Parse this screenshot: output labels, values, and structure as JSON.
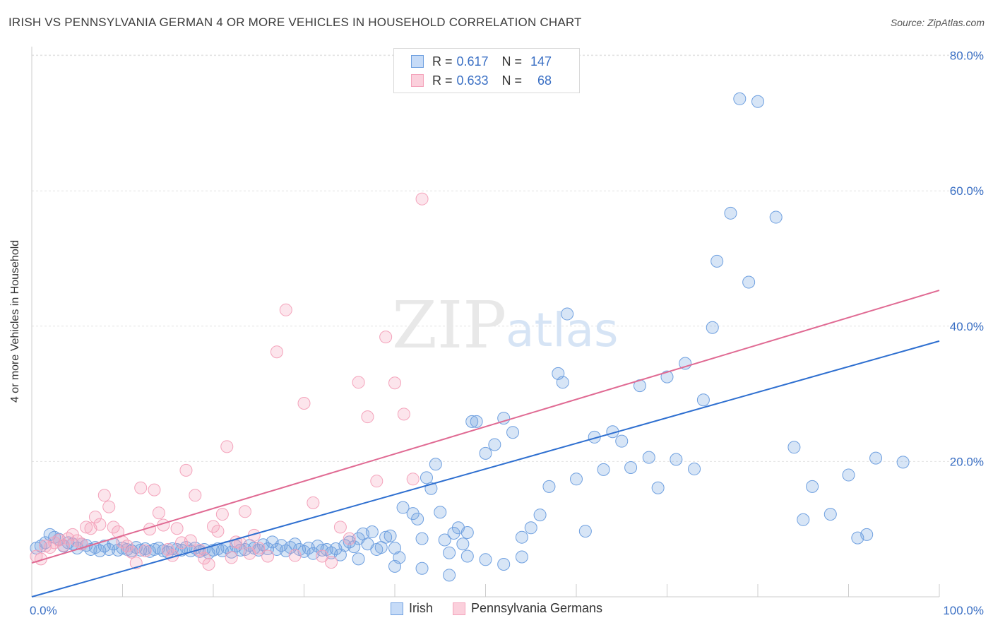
{
  "title": "IRISH VS PENNSYLVANIA GERMAN 4 OR MORE VEHICLES IN HOUSEHOLD CORRELATION CHART",
  "source": "Source: ZipAtlas.com",
  "watermark": {
    "zip": "ZIP",
    "atlas": "atlas"
  },
  "legend": {
    "rows": [
      {
        "r_label": "R =",
        "r_value": "0.617",
        "n_label": "N =",
        "n_value": "147"
      },
      {
        "r_label": "R =",
        "r_value": "0.633",
        "n_label": "N =",
        "n_value": "68"
      }
    ]
  },
  "chart_data": {
    "type": "scatter",
    "title": "IRISH VS PENNSYLVANIA GERMAN 4 OR MORE VEHICLES IN HOUSEHOLD CORRELATION CHART",
    "xlabel": "",
    "ylabel": "4 or more Vehicles in Household",
    "xlim": [
      0,
      100
    ],
    "ylim": [
      0,
      80
    ],
    "x_tick_labels": [
      "0.0%",
      "100.0%"
    ],
    "y_ticks": [
      20,
      40,
      60,
      80
    ],
    "y_tick_labels": [
      "20.0%",
      "40.0%",
      "60.0%",
      "80.0%"
    ],
    "grid": true,
    "legend_position": "top-center",
    "colors": {
      "irish": "#6fa0e0",
      "irish_line": "#2e6fd0",
      "pa": "#f4a3bb",
      "pa_line": "#e06a93",
      "tick": "#3a6fc4"
    },
    "series": [
      {
        "name": "Irish",
        "trend": {
          "x": [
            0,
            100
          ],
          "y": [
            0.0,
            37.8
          ]
        },
        "points": [
          [
            0.5,
            7.2
          ],
          [
            1.0,
            7.5
          ],
          [
            1.5,
            8.0
          ],
          [
            2.0,
            9.2
          ],
          [
            2.5,
            8.8
          ],
          [
            3.0,
            8.5
          ],
          [
            3.5,
            7.5
          ],
          [
            4.0,
            8.0
          ],
          [
            4.5,
            7.8
          ],
          [
            5.0,
            7.2
          ],
          [
            5.5,
            7.8
          ],
          [
            6.0,
            7.6
          ],
          [
            6.5,
            7.0
          ],
          [
            7.0,
            7.3
          ],
          [
            7.5,
            6.8
          ],
          [
            8.0,
            7.5
          ],
          [
            8.5,
            7.0
          ],
          [
            9.0,
            7.8
          ],
          [
            9.5,
            6.9
          ],
          [
            10.0,
            7.2
          ],
          [
            10.5,
            7.0
          ],
          [
            11.0,
            6.8
          ],
          [
            11.5,
            7.3
          ],
          [
            12.0,
            6.9
          ],
          [
            12.5,
            7.1
          ],
          [
            13.0,
            6.7
          ],
          [
            13.5,
            7.0
          ],
          [
            14.0,
            7.2
          ],
          [
            14.5,
            6.8
          ],
          [
            15.0,
            6.6
          ],
          [
            15.5,
            7.1
          ],
          [
            16.0,
            7.0
          ],
          [
            16.5,
            6.9
          ],
          [
            17.0,
            7.3
          ],
          [
            17.5,
            6.8
          ],
          [
            18.0,
            7.2
          ],
          [
            18.5,
            6.7
          ],
          [
            19.0,
            7.0
          ],
          [
            19.5,
            6.5
          ],
          [
            20.0,
            6.9
          ],
          [
            20.5,
            7.1
          ],
          [
            21.0,
            6.8
          ],
          [
            21.5,
            7.3
          ],
          [
            22.0,
            6.6
          ],
          [
            22.5,
            7.5
          ],
          [
            23.0,
            6.9
          ],
          [
            23.5,
            7.0
          ],
          [
            24.0,
            7.6
          ],
          [
            24.5,
            7.2
          ],
          [
            25.0,
            6.9
          ],
          [
            25.5,
            7.7
          ],
          [
            26.0,
            7.1
          ],
          [
            26.5,
            8.1
          ],
          [
            27.0,
            7.0
          ],
          [
            27.5,
            7.6
          ],
          [
            28.0,
            6.8
          ],
          [
            28.5,
            7.3
          ],
          [
            29.0,
            7.8
          ],
          [
            29.5,
            7.0
          ],
          [
            30.0,
            6.7
          ],
          [
            30.5,
            7.2
          ],
          [
            31.0,
            6.4
          ],
          [
            31.5,
            7.5
          ],
          [
            32.0,
            6.9
          ],
          [
            32.5,
            7.0
          ],
          [
            33.0,
            6.5
          ],
          [
            33.5,
            7.1
          ],
          [
            34.0,
            6.2
          ],
          [
            34.5,
            7.6
          ],
          [
            35.0,
            8.1
          ],
          [
            35.5,
            7.4
          ],
          [
            36.0,
            8.6
          ],
          [
            36.5,
            9.3
          ],
          [
            37.0,
            7.8
          ],
          [
            37.5,
            9.6
          ],
          [
            38.0,
            7.0
          ],
          [
            38.5,
            7.3
          ],
          [
            39.0,
            8.8
          ],
          [
            39.5,
            9.0
          ],
          [
            40.0,
            7.2
          ],
          [
            40.5,
            5.8
          ],
          [
            40.9,
            13.2
          ],
          [
            42.0,
            12.3
          ],
          [
            42.5,
            11.5
          ],
          [
            43.0,
            8.6
          ],
          [
            43.5,
            17.6
          ],
          [
            44.0,
            16.0
          ],
          [
            44.5,
            19.6
          ],
          [
            45.0,
            12.5
          ],
          [
            45.5,
            8.4
          ],
          [
            46.0,
            6.5
          ],
          [
            46.5,
            9.4
          ],
          [
            47.0,
            10.2
          ],
          [
            47.5,
            7.8
          ],
          [
            48.0,
            9.5
          ],
          [
            48.5,
            25.9
          ],
          [
            49.0,
            25.9
          ],
          [
            50.0,
            21.2
          ],
          [
            51.0,
            22.5
          ],
          [
            52.0,
            26.4
          ],
          [
            53.0,
            24.3
          ],
          [
            54.0,
            8.8
          ],
          [
            55.0,
            10.2
          ],
          [
            56.0,
            12.1
          ],
          [
            57.0,
            16.3
          ],
          [
            58.0,
            33.0
          ],
          [
            58.5,
            31.7
          ],
          [
            59.0,
            41.8
          ],
          [
            60.0,
            17.4
          ],
          [
            61.0,
            9.7
          ],
          [
            62.0,
            23.6
          ],
          [
            63.0,
            18.8
          ],
          [
            64.0,
            24.4
          ],
          [
            65.0,
            23.0
          ],
          [
            66.0,
            19.1
          ],
          [
            67.0,
            31.2
          ],
          [
            68.0,
            20.6
          ],
          [
            69.0,
            16.1
          ],
          [
            70.0,
            32.5
          ],
          [
            71.0,
            20.3
          ],
          [
            72.0,
            34.5
          ],
          [
            73.0,
            18.9
          ],
          [
            74.0,
            29.1
          ],
          [
            75.0,
            39.8
          ],
          [
            75.5,
            49.6
          ],
          [
            77.0,
            56.7
          ],
          [
            78.0,
            73.6
          ],
          [
            79.0,
            46.5
          ],
          [
            80.0,
            73.2
          ],
          [
            82.0,
            56.1
          ],
          [
            84.0,
            22.1
          ],
          [
            85.0,
            11.4
          ],
          [
            86.0,
            16.3
          ],
          [
            88.0,
            12.2
          ],
          [
            90.0,
            18.0
          ],
          [
            91.0,
            8.7
          ],
          [
            92.0,
            9.2
          ],
          [
            93.0,
            20.5
          ],
          [
            96.0,
            19.9
          ],
          [
            36.0,
            5.6
          ],
          [
            40.0,
            4.5
          ],
          [
            43.0,
            4.2
          ],
          [
            46.0,
            3.2
          ],
          [
            48.0,
            6.0
          ],
          [
            50.0,
            5.5
          ],
          [
            52.0,
            4.8
          ],
          [
            54.0,
            5.9
          ]
        ]
      },
      {
        "name": "Pennsylvania Germans",
        "trend": {
          "x": [
            0,
            100
          ],
          "y": [
            5.0,
            45.3
          ]
        },
        "points": [
          [
            0.5,
            6.0
          ],
          [
            1.0,
            5.6
          ],
          [
            1.5,
            7.5
          ],
          [
            2.0,
            7.3
          ],
          [
            2.5,
            8.0
          ],
          [
            3.0,
            8.4
          ],
          [
            3.5,
            7.6
          ],
          [
            4.0,
            8.6
          ],
          [
            4.5,
            9.2
          ],
          [
            5.0,
            8.3
          ],
          [
            5.5,
            7.8
          ],
          [
            6.0,
            10.3
          ],
          [
            6.5,
            10.1
          ],
          [
            7.0,
            11.8
          ],
          [
            7.5,
            10.7
          ],
          [
            8.0,
            15.0
          ],
          [
            8.5,
            13.3
          ],
          [
            9.0,
            10.3
          ],
          [
            9.5,
            9.6
          ],
          [
            10.0,
            8.1
          ],
          [
            10.5,
            7.5
          ],
          [
            11.0,
            6.6
          ],
          [
            11.5,
            5.0
          ],
          [
            12.0,
            16.1
          ],
          [
            12.5,
            6.8
          ],
          [
            13.0,
            10.0
          ],
          [
            13.5,
            15.8
          ],
          [
            14.0,
            12.4
          ],
          [
            14.5,
            10.6
          ],
          [
            15.0,
            7.0
          ],
          [
            15.5,
            6.1
          ],
          [
            16.0,
            10.1
          ],
          [
            16.5,
            8.0
          ],
          [
            17.0,
            18.7
          ],
          [
            17.5,
            8.3
          ],
          [
            18.0,
            15.0
          ],
          [
            18.5,
            6.9
          ],
          [
            19.0,
            5.7
          ],
          [
            19.5,
            4.8
          ],
          [
            20.0,
            10.4
          ],
          [
            20.5,
            9.7
          ],
          [
            21.0,
            12.2
          ],
          [
            21.5,
            22.2
          ],
          [
            22.0,
            5.8
          ],
          [
            22.5,
            8.1
          ],
          [
            23.0,
            7.9
          ],
          [
            23.5,
            12.6
          ],
          [
            24.0,
            6.4
          ],
          [
            24.5,
            9.1
          ],
          [
            25.0,
            7.2
          ],
          [
            26.0,
            6.0
          ],
          [
            27.0,
            36.2
          ],
          [
            28.0,
            42.4
          ],
          [
            29.0,
            6.1
          ],
          [
            30.0,
            28.6
          ],
          [
            31.0,
            13.9
          ],
          [
            32.0,
            6.0
          ],
          [
            33.0,
            5.1
          ],
          [
            34.0,
            10.3
          ],
          [
            35.0,
            8.6
          ],
          [
            36.0,
            31.7
          ],
          [
            37.0,
            26.6
          ],
          [
            38.0,
            17.1
          ],
          [
            39.0,
            38.4
          ],
          [
            40.0,
            31.6
          ],
          [
            41.0,
            27.0
          ],
          [
            42.0,
            17.4
          ],
          [
            43.0,
            58.8
          ]
        ]
      }
    ]
  }
}
